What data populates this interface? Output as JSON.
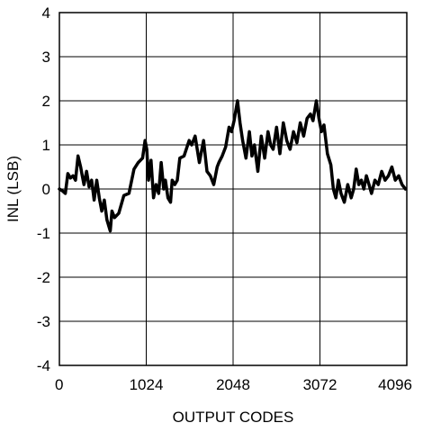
{
  "chart_data": {
    "type": "line",
    "xlabel": "OUTPUT CODES",
    "ylabel": "INL (LSB)",
    "xlim": [
      0,
      4096
    ],
    "ylim": [
      -4,
      4
    ],
    "x_ticks": [
      "0",
      "1024",
      "2048",
      "3072",
      "4096"
    ],
    "y_ticks": [
      "-4",
      "-3",
      "-2",
      "-1",
      "0",
      "1",
      "2",
      "3",
      "4"
    ],
    "grid": true,
    "legend": "none",
    "line_color": "#000000",
    "series": [
      {
        "x": [
          0,
          40,
          70,
          100,
          130,
          160,
          190,
          220,
          250,
          270,
          290,
          320,
          350,
          380,
          410,
          440,
          470,
          500,
          530,
          560,
          600,
          620,
          650,
          700,
          760,
          820,
          880,
          930,
          980,
          1010,
          1030,
          1050,
          1080,
          1110,
          1140,
          1170,
          1200,
          1230,
          1250,
          1280,
          1310,
          1330,
          1360,
          1390,
          1420,
          1470,
          1530,
          1560,
          1600,
          1650,
          1700,
          1740,
          1780,
          1820,
          1860,
          1880,
          1920,
          1960,
          2000,
          2030,
          2060,
          2100,
          2130,
          2160,
          2200,
          2240,
          2270,
          2300,
          2340,
          2380,
          2420,
          2460,
          2490,
          2520,
          2560,
          2600,
          2640,
          2680,
          2720,
          2760,
          2800,
          2840,
          2880,
          2920,
          2960,
          2990,
          3030,
          3060,
          3090,
          3120,
          3160,
          3200,
          3230,
          3260,
          3290,
          3320,
          3360,
          3400,
          3440,
          3470,
          3500,
          3530,
          3560,
          3590,
          3620,
          3650,
          3680,
          3720,
          3760,
          3800,
          3840,
          3880,
          3920,
          3960,
          4000,
          4040,
          4080
        ],
        "y": [
          0.0,
          -0.05,
          -0.1,
          0.35,
          0.25,
          0.3,
          0.2,
          0.75,
          0.5,
          0.3,
          0.1,
          0.4,
          0.05,
          0.2,
          -0.25,
          0.2,
          -0.2,
          -0.5,
          -0.25,
          -0.7,
          -0.95,
          -0.5,
          -0.65,
          -0.55,
          -0.15,
          -0.1,
          0.45,
          0.6,
          0.7,
          1.1,
          0.9,
          0.2,
          0.65,
          -0.2,
          0.1,
          -0.1,
          0.6,
          0.0,
          0.2,
          -0.2,
          -0.3,
          0.2,
          0.1,
          0.2,
          0.7,
          0.75,
          1.1,
          1.0,
          1.2,
          0.6,
          1.1,
          0.4,
          0.3,
          0.1,
          0.5,
          0.6,
          0.75,
          0.95,
          1.4,
          1.3,
          1.55,
          2.0,
          1.5,
          1.1,
          0.7,
          1.3,
          0.75,
          1.0,
          0.4,
          1.2,
          0.7,
          1.3,
          1.0,
          0.9,
          1.4,
          0.8,
          1.5,
          1.1,
          0.9,
          1.3,
          1.05,
          1.5,
          1.2,
          1.6,
          1.7,
          1.55,
          2.0,
          1.6,
          1.3,
          1.45,
          0.8,
          0.55,
          0.0,
          -0.2,
          0.2,
          -0.1,
          -0.3,
          0.1,
          -0.2,
          0.0,
          0.45,
          0.1,
          0.2,
          0.0,
          0.3,
          0.1,
          -0.1,
          0.2,
          0.1,
          0.4,
          0.2,
          0.3,
          0.5,
          0.2,
          0.3,
          0.1,
          0.0
        ]
      }
    ]
  }
}
